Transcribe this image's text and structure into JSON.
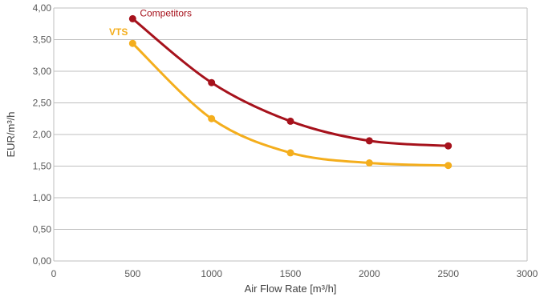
{
  "chart_data": {
    "type": "line",
    "title": "",
    "xlabel": "Air Flow Rate [m³/h]",
    "ylabel": "EUR/m³/h",
    "xlim": [
      0,
      3000
    ],
    "ylim": [
      0,
      4
    ],
    "x_ticks": [
      0,
      500,
      1000,
      1500,
      2000,
      2500,
      3000
    ],
    "x_tick_labels": [
      "0",
      "500",
      "1000",
      "1500",
      "2000",
      "2500",
      "3000"
    ],
    "y_ticks": [
      0,
      0.5,
      1,
      1.5,
      2,
      2.5,
      3,
      3.5,
      4
    ],
    "y_tick_labels": [
      "0,00",
      "0,50",
      "1,00",
      "1,50",
      "2,00",
      "2,50",
      "3,00",
      "3,50",
      "4,00"
    ],
    "grid": "horizontal",
    "smooth": true,
    "series": [
      {
        "name": "Competitors",
        "color": "#a6121c",
        "x": [
          500,
          1000,
          1500,
          2000,
          2500
        ],
        "values": [
          3.83,
          2.82,
          2.21,
          1.9,
          1.82
        ]
      },
      {
        "name": "VTS",
        "color": "#f4ae1d",
        "x": [
          500,
          1000,
          1500,
          2000,
          2500
        ],
        "values": [
          3.44,
          2.25,
          1.71,
          1.55,
          1.51
        ]
      }
    ]
  }
}
